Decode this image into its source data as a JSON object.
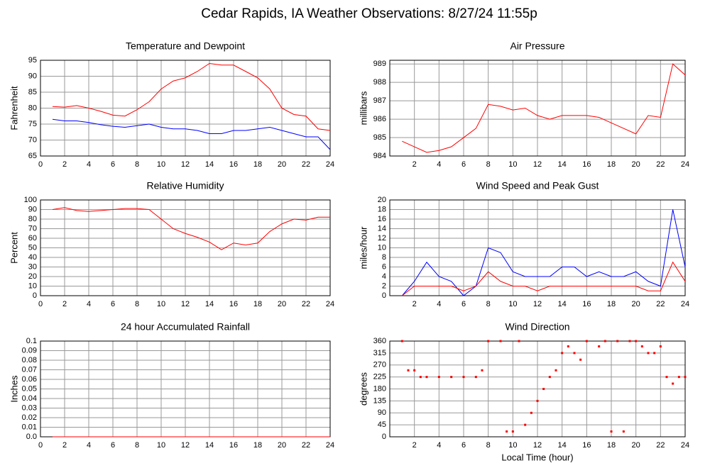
{
  "title": "Cedar Rapids, IA Weather Observations: 8/27/24 11:55p",
  "chart_data": [
    {
      "type": "line",
      "title": "Temperature and Dewpoint",
      "ylabel": "Fahrenheit",
      "x": [
        1,
        2,
        3,
        4,
        5,
        6,
        7,
        8,
        9,
        10,
        11,
        12,
        13,
        14,
        15,
        16,
        17,
        18,
        19,
        20,
        21,
        22,
        23,
        24
      ],
      "series": [
        {
          "color": "#ff0000",
          "values": [
            80.5,
            80.3,
            80.8,
            80,
            79,
            77.8,
            77.5,
            79.5,
            82,
            86,
            88.5,
            89.5,
            91.5,
            94,
            93.5,
            93.5,
            91.5,
            89.5,
            86,
            80,
            78,
            77.5,
            73.5,
            73
          ]
        },
        {
          "color": "#0000ff",
          "values": [
            76.5,
            76,
            76,
            75.5,
            74.8,
            74.3,
            74,
            74.5,
            75,
            74,
            73.5,
            73.5,
            73,
            72,
            72,
            73,
            73,
            73.5,
            74,
            73,
            72,
            71,
            71,
            67
          ]
        }
      ],
      "xlim": [
        0,
        24
      ],
      "xticks": [
        0,
        2,
        4,
        6,
        8,
        10,
        12,
        14,
        16,
        18,
        20,
        22,
        24
      ],
      "ylim": [
        65,
        95
      ],
      "yticks": [
        65,
        70,
        75,
        80,
        85,
        90,
        95
      ],
      "grid": true
    },
    {
      "type": "line",
      "title": "Air Pressure",
      "ylabel": "millibars",
      "x": [
        1,
        2,
        3,
        4,
        5,
        6,
        7,
        8,
        9,
        10,
        11,
        12,
        13,
        14,
        15,
        16,
        17,
        18,
        19,
        20,
        21,
        22,
        23,
        24
      ],
      "series": [
        {
          "color": "#ff0000",
          "values": [
            984.8,
            984.5,
            984.2,
            984.3,
            984.5,
            985,
            985.5,
            986.8,
            986.7,
            986.5,
            986.6,
            986.2,
            986,
            986.2,
            986.2,
            986.2,
            986.1,
            985.8,
            985.5,
            985.2,
            986.2,
            986.1,
            989,
            988.4
          ]
        }
      ],
      "xlim": [
        0,
        24
      ],
      "xticks": [
        2,
        4,
        6,
        8,
        10,
        12,
        14,
        16,
        18,
        20,
        22,
        24
      ],
      "ylim": [
        984,
        989.2
      ],
      "yticks": [
        984,
        985,
        986,
        987,
        988,
        989
      ],
      "grid": true
    },
    {
      "type": "line",
      "title": "Relative Humidity",
      "ylabel": "Percent",
      "x": [
        1,
        2,
        3,
        4,
        5,
        6,
        7,
        8,
        9,
        10,
        11,
        12,
        13,
        14,
        15,
        16,
        17,
        18,
        19,
        20,
        21,
        22,
        23,
        24
      ],
      "series": [
        {
          "color": "#ff0000",
          "values": [
            90,
            92,
            89,
            88,
            89,
            90,
            91,
            91,
            90,
            80,
            70,
            65,
            61,
            56,
            48,
            55,
            53,
            55,
            67,
            75,
            80,
            79,
            82,
            82
          ]
        }
      ],
      "xlim": [
        0,
        24
      ],
      "xticks": [
        0,
        2,
        4,
        6,
        8,
        10,
        12,
        14,
        16,
        18,
        20,
        22,
        24
      ],
      "ylim": [
        0,
        100
      ],
      "yticks": [
        0,
        10,
        20,
        30,
        40,
        50,
        60,
        70,
        80,
        90,
        100
      ],
      "grid": true
    },
    {
      "type": "line",
      "title": "Wind Speed and Peak Gust",
      "ylabel": "miles/hour",
      "x": [
        1,
        2,
        3,
        4,
        5,
        6,
        7,
        8,
        9,
        10,
        11,
        12,
        13,
        14,
        15,
        16,
        17,
        18,
        19,
        20,
        21,
        22,
        23,
        24
      ],
      "series": [
        {
          "color": "#0000ff",
          "values": [
            0,
            3,
            7,
            4,
            3,
            0,
            2,
            10,
            9,
            5,
            4,
            4,
            4,
            6,
            6,
            4,
            5,
            4,
            4,
            5,
            3,
            2,
            18,
            6
          ]
        },
        {
          "color": "#ff0000",
          "values": [
            0,
            2,
            2,
            2,
            2,
            1,
            2,
            5,
            3,
            2,
            2,
            1,
            2,
            2,
            2,
            2,
            2,
            2,
            2,
            2,
            1,
            1,
            7,
            3
          ]
        }
      ],
      "xlim": [
        0,
        24
      ],
      "xticks": [
        2,
        4,
        6,
        8,
        10,
        12,
        14,
        16,
        18,
        20,
        22,
        24
      ],
      "ylim": [
        0,
        20
      ],
      "yticks": [
        0,
        2,
        4,
        6,
        8,
        10,
        12,
        14,
        16,
        18,
        20
      ],
      "grid": true
    },
    {
      "type": "line",
      "title": "24 hour Accumulated Rainfall",
      "ylabel": "Inches",
      "x": [
        1,
        24
      ],
      "series": [
        {
          "color": "#ff0000",
          "values": [
            0,
            0
          ]
        }
      ],
      "xlim": [
        0,
        24
      ],
      "xticks": [
        0,
        2,
        4,
        6,
        8,
        10,
        12,
        14,
        16,
        18,
        20,
        22,
        24
      ],
      "ylim": [
        0,
        0.1
      ],
      "yticks": [
        {
          "value": 0,
          "label": "0.0"
        },
        0.01,
        0.02,
        0.03,
        0.04,
        0.05,
        0.06,
        0.07,
        0.08,
        0.09,
        0.1
      ],
      "grid": true
    },
    {
      "type": "scatter",
      "title": "Wind Direction",
      "ylabel": "degrees",
      "xlabel": "Local Time (hour)",
      "x": [
        1,
        1.5,
        2,
        2.5,
        3,
        4,
        5,
        6,
        7,
        7.5,
        8,
        9,
        9.5,
        10,
        10.5,
        11,
        11.5,
        12,
        12.5,
        13,
        13.5,
        14,
        14.5,
        15,
        15.5,
        16,
        17,
        17.5,
        18,
        18.5,
        19,
        19.5,
        20,
        20.5,
        21,
        21.5,
        22,
        22.5,
        23,
        23.5,
        24
      ],
      "series": [
        {
          "color": "#ff0000",
          "values": [
            360,
            250,
            250,
            225,
            225,
            225,
            225,
            225,
            225,
            250,
            360,
            360,
            20,
            20,
            360,
            45,
            90,
            135,
            180,
            225,
            250,
            315,
            340,
            315,
            290,
            360,
            340,
            360,
            20,
            360,
            20,
            360,
            360,
            340,
            315,
            315,
            340,
            225,
            200,
            225,
            225
          ]
        }
      ],
      "xlim": [
        0,
        24
      ],
      "xticks": [
        2,
        4,
        6,
        8,
        10,
        12,
        14,
        16,
        18,
        20,
        22,
        24
      ],
      "ylim": [
        0,
        360
      ],
      "yticks": [
        0,
        45,
        90,
        135,
        180,
        225,
        270,
        315,
        360
      ],
      "grid": true
    }
  ]
}
